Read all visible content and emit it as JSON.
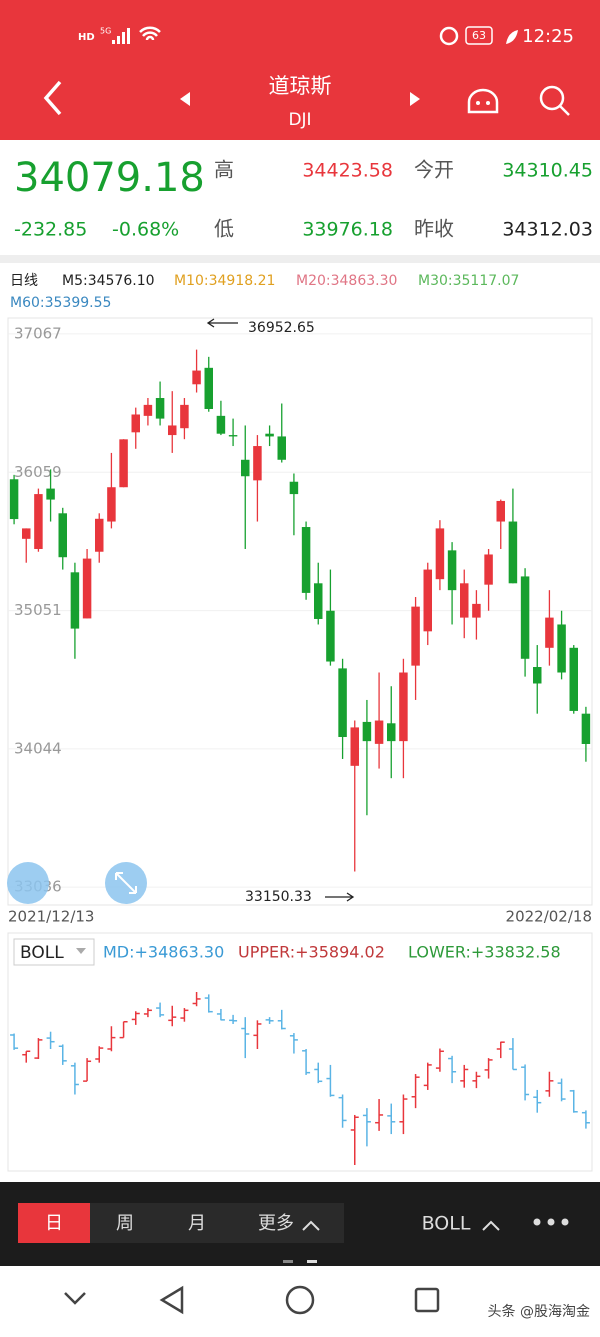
{
  "status_bar": {
    "network": "HD",
    "signal": "5G",
    "battery": "63",
    "time": "12:25"
  },
  "header": {
    "title": "道琼斯",
    "subtitle": "DJI"
  },
  "quote": {
    "price": "34079.18",
    "change": "-232.85",
    "change_pct": "-0.68%",
    "high_label": "高",
    "high": "34423.58",
    "open_label": "今开",
    "open": "34310.45",
    "low_label": "低",
    "low": "33976.18",
    "prev_close_label": "昨收",
    "prev_close": "34312.03"
  },
  "indicators": {
    "period": "日线",
    "ma": [
      {
        "text": "M5:34576.10",
        "color": "#222222"
      },
      {
        "text": "M10:34918.21",
        "color": "#e0a020"
      },
      {
        "text": "M20:34863.30",
        "color": "#e07585"
      },
      {
        "text": "M30:35117.07",
        "color": "#5cb85c"
      },
      {
        "text": "M60:35399.55",
        "color": "#3a88c0"
      }
    ]
  },
  "chart_data": {
    "type": "candlestick",
    "open": [
      36008,
      35574,
      35500,
      35940,
      35760,
      35330,
      34994,
      35480,
      35700,
      35950,
      36350,
      36470,
      36600,
      36330,
      36380,
      36700,
      36820,
      36470,
      36330,
      36150,
      36000,
      36340,
      36320,
      35990,
      35660,
      35250,
      35050,
      34630,
      33920,
      34240,
      34080,
      34230,
      34100,
      34650,
      34900,
      35280,
      35490,
      35000,
      35000,
      35240,
      35700,
      35700,
      35300,
      34640,
      34780,
      34950,
      34780,
      34300
    ],
    "high": [
      36040,
      35650,
      35940,
      36080,
      35800,
      35400,
      35500,
      35760,
      36200,
      36300,
      36530,
      36600,
      36720,
      36650,
      36600,
      36952.65,
      36900,
      36580,
      36450,
      36400,
      36330,
      36400,
      36560,
      36050,
      35700,
      35400,
      35350,
      34700,
      34250,
      34400,
      34600,
      34500,
      34700,
      35150,
      35400,
      35710,
      35550,
      35350,
      35200,
      35500,
      35860,
      35940,
      35360,
      34800,
      35200,
      35050,
      34800,
      34350
    ],
    "low": [
      35680,
      35400,
      35480,
      35700,
      35350,
      34700,
      34994,
      35400,
      35650,
      35950,
      36230,
      36400,
      36400,
      36200,
      36300,
      36640,
      36500,
      36330,
      36250,
      35500,
      35700,
      36250,
      36130,
      35600,
      35130,
      34950,
      34650,
      33970,
      33150.33,
      33560,
      33900,
      33830,
      33830,
      34400,
      34800,
      35200,
      34950,
      34850,
      34840,
      35050,
      35500,
      35250,
      34570,
      34300,
      34650,
      34550,
      34300,
      33950
    ],
    "close": [
      35718,
      35650,
      35900,
      35860,
      35440,
      34920,
      35430,
      35720,
      35950,
      36299,
      36480,
      36550,
      36450,
      36400,
      36550,
      36800,
      36520,
      36340,
      36320,
      36030,
      36250,
      36320,
      36150,
      35900,
      35180,
      34990,
      34680,
      34130,
      34200,
      34100,
      34250,
      34100,
      34600,
      35080,
      35350,
      35650,
      35200,
      35250,
      35100,
      35460,
      35850,
      35250,
      34700,
      34520,
      35000,
      34600,
      34320,
      34079.18
    ],
    "ylim": [
      32906,
      37183
    ],
    "yticks": [
      37067,
      36059,
      35051,
      34044,
      33036
    ],
    "x_start": "2021/12/13",
    "x_end": "2022/02/18",
    "annotations": [
      {
        "text": "36952.65"
      },
      {
        "text": "33150.33"
      }
    ],
    "up_color": "#e8363c",
    "down_color": "#17a02f",
    "boll_down_color": "#5ab4e5"
  },
  "boll": {
    "selector": "BOLL",
    "md": "MD:+34863.30",
    "upper": "UPPER:+35894.02",
    "lower": "LOWER:+33832.58"
  },
  "tabs": [
    "日",
    "周",
    "月",
    "更多"
  ],
  "tab_indicator": "BOLL",
  "nav": {
    "watermark": "头条 @股海淘金"
  }
}
